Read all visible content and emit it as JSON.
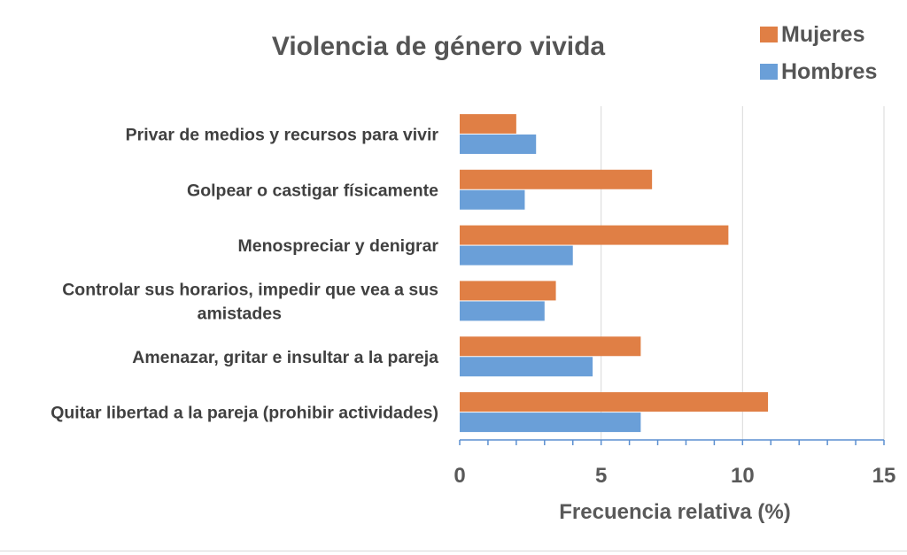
{
  "chart_data": {
    "type": "bar",
    "orientation": "horizontal",
    "title": "Violencia de género vivida",
    "xlabel": "Frecuencia relativa (%)",
    "ylabel": "",
    "categories": [
      [
        "Privar de medios y recursos para vivir"
      ],
      [
        "Golpear o castigar físicamente"
      ],
      [
        "Menospreciar y denigrar"
      ],
      [
        "Controlar sus horarios, impedir que vea a sus",
        "amistades"
      ],
      [
        "Amenazar, gritar e insultar a la pareja"
      ],
      [
        "Quitar libertad a la pareja (prohibir actividades)"
      ]
    ],
    "series": [
      {
        "name": "Mujeres",
        "color": "#E07F45",
        "values": [
          2.0,
          6.8,
          9.5,
          3.4,
          6.4,
          10.9
        ]
      },
      {
        "name": "Hombres",
        "color": "#6A9FD8",
        "values": [
          2.7,
          2.3,
          4.0,
          3.0,
          4.7,
          6.4
        ]
      }
    ],
    "xlim": [
      0,
      15
    ],
    "xticks": [
      0,
      5,
      10,
      15
    ],
    "xtick_labels": [
      "0",
      "5",
      "10",
      "15"
    ],
    "grid": true,
    "legend_position": "top-right"
  }
}
